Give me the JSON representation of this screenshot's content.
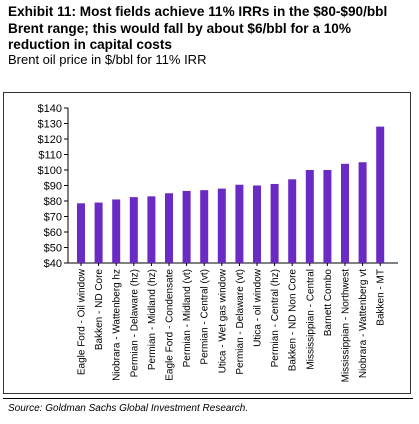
{
  "header": {
    "title": "Exhibit 11: Most fields achieve 11% IRRs in the $80-$90/bbl Brent range; this would fall by about $6/bbl for a 10% reduction in capital costs",
    "subtitle": "Brent oil price in $/bbl for 11% IRR"
  },
  "footer": {
    "source": "Source: Goldman Sachs Global Investment Research."
  },
  "chart_data": {
    "type": "bar",
    "categories": [
      "Eagle Ford - Oil window",
      "Bakken - ND Core",
      "Niobrara - Wattenberg hz",
      "Permian - Delaware (hz)",
      "Permian - Midland (hz)",
      "Eagle Ford - Condensate",
      "Permian - Midland (vt)",
      "Permian - Central (vt)",
      "Utica - Wet gas window",
      "Permian - Delaware (vt)",
      "Utica - oil window",
      "Permian - Central (hz)",
      "Bakken - ND Non Core",
      "Mississippian - Central",
      "Barnett Combo",
      "Mississippian - Northwest",
      "Niobrara - Wattenberg vt",
      "Bakken - MT"
    ],
    "values": [
      78.5,
      79,
      81,
      82.5,
      83,
      85,
      86.5,
      87,
      88,
      90.5,
      90,
      91,
      94,
      100,
      100,
      104,
      105,
      128
    ],
    "ylim": [
      40,
      140
    ],
    "yticks": [
      "$40",
      "$50",
      "$60",
      "$70",
      "$80",
      "$90",
      "$100",
      "$110",
      "$120",
      "$130",
      "$140"
    ],
    "ytick_values": [
      40,
      50,
      60,
      70,
      80,
      90,
      100,
      110,
      120,
      130,
      140
    ],
    "grid": false,
    "bar_color": "#6A2BC4"
  }
}
